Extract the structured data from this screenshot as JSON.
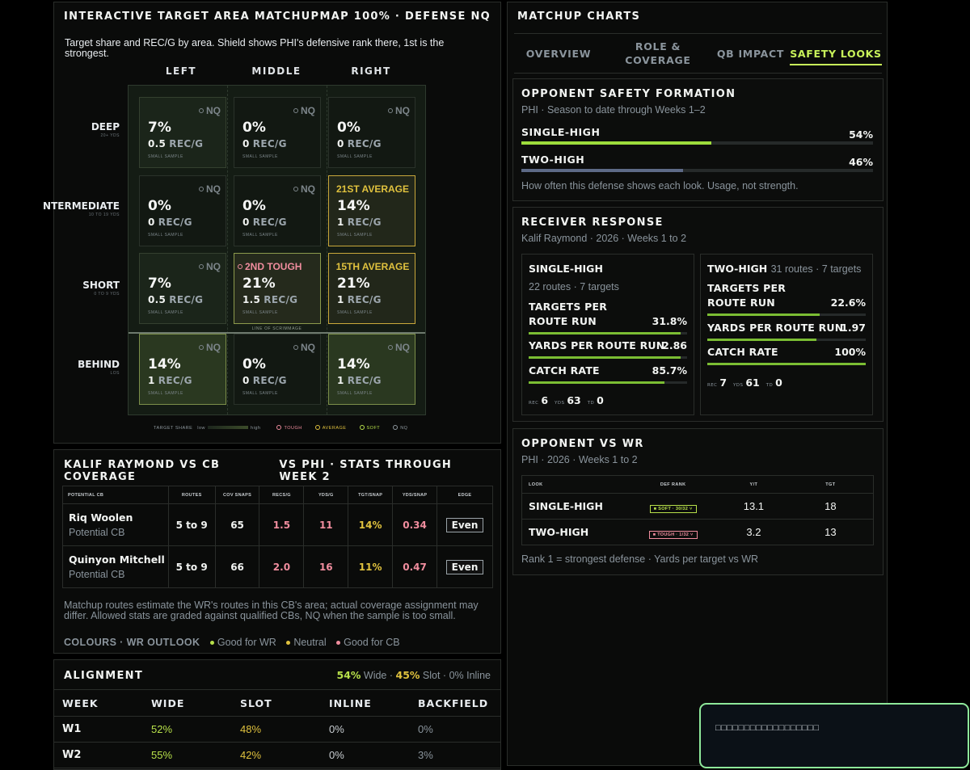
{
  "target_area": {
    "title": "INTERACTIVE TARGET AREA MATCHUP",
    "meta": "MAP 100% · DEFENSE NQ",
    "description": "Target share and REC/G by area. Shield shows PHI's defensive rank there, 1st is the strongest.",
    "columns": [
      "LEFT",
      "MIDDLE",
      "RIGHT"
    ],
    "rows": [
      {
        "name": "DEEP",
        "sub": "20+ YDS"
      },
      {
        "name": "NTERMEDIATE",
        "sub": "10 TO 19 YDS"
      },
      {
        "name": "SHORT",
        "sub": "0 TO 9 YDS"
      },
      {
        "name": "BEHIND",
        "sub": "LOS"
      }
    ],
    "line_of_scrimmage": "LINE OF SCRIMMAGE",
    "rec_unit": "REC/G",
    "zones": [
      {
        "rank": "NQ",
        "pct": "7%",
        "rec": "0.5",
        "note": "SMALL SAMPLE",
        "tone": "none",
        "share": 0.07
      },
      {
        "rank": "NQ",
        "pct": "0%",
        "rec": "0",
        "note": "SMALL SAMPLE",
        "tone": "none",
        "share": 0.0
      },
      {
        "rank": "NQ",
        "pct": "0%",
        "rec": "0",
        "note": "SMALL SAMPLE",
        "tone": "none",
        "share": 0.0
      },
      {
        "rank": "NQ",
        "pct": "0%",
        "rec": "0",
        "note": "SMALL SAMPLE",
        "tone": "none",
        "share": 0.0
      },
      {
        "rank": "NQ",
        "pct": "0%",
        "rec": "0",
        "note": "SMALL SAMPLE",
        "tone": "none",
        "share": 0.0
      },
      {
        "rank": "21ST AVERAGE",
        "pct": "14%",
        "rec": "1",
        "note": "SMALL SAMPLE",
        "tone": "average",
        "share": 0.14
      },
      {
        "rank": "NQ",
        "pct": "7%",
        "rec": "0.5",
        "note": "SMALL SAMPLE",
        "tone": "none",
        "share": 0.07
      },
      {
        "rank": "2ND TOUGH",
        "pct": "21%",
        "rec": "1.5",
        "note": "SMALL SAMPLE",
        "tone": "tough",
        "share": 0.21
      },
      {
        "rank": "15TH AVERAGE",
        "pct": "21%",
        "rec": "1",
        "note": "SMALL SAMPLE",
        "tone": "average",
        "share": 0.21
      },
      {
        "rank": "NQ",
        "pct": "14%",
        "rec": "1",
        "note": "SMALL SAMPLE",
        "tone": "none",
        "share": 0.14
      },
      {
        "rank": "NQ",
        "pct": "0%",
        "rec": "0",
        "note": "SMALL SAMPLE",
        "tone": "none",
        "share": 0.0
      },
      {
        "rank": "NQ",
        "pct": "14%",
        "rec": "1",
        "note": "SMALL SAMPLE",
        "tone": "none",
        "share": 0.14
      }
    ],
    "legend": {
      "label": "TARGET SHARE",
      "low": "low",
      "high": "high",
      "tough": "TOUGH",
      "average": "AVERAGE",
      "soft": "SOFT",
      "nq": "NQ"
    }
  },
  "cb_coverage": {
    "title": "KALIF RAYMOND VS CB COVERAGE",
    "meta": "VS PHI · STATS THROUGH WEEK 2",
    "headers": [
      "POTENTIAL CB",
      "ROUTES",
      "COV SNAPS",
      "RECS/G",
      "YDS/G",
      "TGT/SNAP",
      "YDS/SNAP",
      "EDGE"
    ],
    "rows": [
      {
        "name": "Riq Woolen",
        "role": "Potential CB",
        "routes": "5 to 9",
        "cov_snaps": "65",
        "recs_g": "1.5",
        "yds_g": "11",
        "tgt_snap": "14%",
        "yds_snap": "0.34",
        "edge": "Even"
      },
      {
        "name": "Quinyon Mitchell",
        "role": "Potential CB",
        "routes": "5 to 9",
        "cov_snaps": "66",
        "recs_g": "2.0",
        "yds_g": "16",
        "tgt_snap": "11%",
        "yds_snap": "0.47",
        "edge": "Even"
      }
    ],
    "note": "Matchup routes estimate the WR's routes in this CB's area; actual coverage assignment may differ. Allowed stats are graded against qualified CBs, NQ when the sample is too small.",
    "colours_label": "COLOURS · WR OUTLOOK",
    "colours": [
      "Good for WR",
      "Neutral",
      "Good for CB"
    ]
  },
  "alignment": {
    "title": "ALIGNMENT",
    "summary": {
      "wide_pct": "54%",
      "wide": "Wide",
      "slot_pct": "45%",
      "slot": "Slot",
      "inline": "0% Inline"
    },
    "headers": [
      "WEEK",
      "WIDE",
      "SLOT",
      "INLINE",
      "BACKFIELD"
    ],
    "rows": [
      {
        "week": "W1",
        "wide": "52%",
        "slot": "48%",
        "inline": "0%",
        "backfield": "0%"
      },
      {
        "week": "W2",
        "wide": "55%",
        "slot": "42%",
        "inline": "0%",
        "backfield": "3%"
      }
    ]
  },
  "charts": {
    "title": "MATCHUP CHARTS",
    "tabs": [
      "OVERVIEW",
      "ROLE &\nCOVERAGE",
      "QB IMPACT",
      "SAFETY LOOKS"
    ],
    "safety": {
      "title": "OPPONENT SAFETY FORMATION",
      "subtitle": "PHI · Season to date through Weeks 1–2",
      "bars": [
        {
          "label": "SINGLE-HIGH",
          "value": "54%",
          "frac": 0.54,
          "color": "#9ddc3c"
        },
        {
          "label": "TWO-HIGH",
          "value": "46%",
          "frac": 0.46,
          "color": "#5d6a86"
        }
      ],
      "footnote": "How often this defense shows each look. Usage, not strength."
    },
    "receiver": {
      "title": "RECEIVER RESPONSE",
      "subtitle": "Kalif Raymond · 2026 · Weeks 1 to 2",
      "single": {
        "title": "SINGLE-HIGH",
        "sub": "22 routes · 7 targets",
        "metrics": [
          {
            "label": "TARGETS PER ROUTE RUN",
            "value": "31.8%",
            "frac": 0.96
          },
          {
            "label": "YARDS PER ROUTE RUN",
            "value": "2.86",
            "frac": 0.96
          },
          {
            "label": "CATCH RATE",
            "value": "85.7%",
            "frac": 0.857
          }
        ],
        "rec_label": "REC",
        "rec": "6",
        "yds_label": "YDS",
        "yds": "63",
        "td_label": "TD",
        "td": "0"
      },
      "two": {
        "title": "TWO-HIGH",
        "sub": "31 routes · 7 targets",
        "metrics": [
          {
            "label": "TARGETS PER ROUTE RUN",
            "value": "22.6%",
            "frac": 0.71
          },
          {
            "label": "YARDS PER ROUTE RUN",
            "value": "1.97",
            "frac": 0.69
          },
          {
            "label": "CATCH RATE",
            "value": "100%",
            "frac": 1.0
          }
        ],
        "rec_label": "REC",
        "rec": "7",
        "yds_label": "YDS",
        "yds": "61",
        "td_label": "TD",
        "td": "0"
      }
    },
    "opp_wr": {
      "title": "OPPONENT VS WR",
      "subtitle": "PHI · 2026 · Weeks 1 to 2",
      "headers": [
        "LOOK",
        "DEF RANK",
        "Y/T",
        "TGT"
      ],
      "rows": [
        {
          "look": "SINGLE-HIGH",
          "rank": "SOFT · 30/32",
          "tone": "soft",
          "yt": "13.1",
          "tgt": "18"
        },
        {
          "look": "TWO-HIGH",
          "rank": "TOUGH · 1/32",
          "tone": "tough",
          "yt": "3.2",
          "tgt": "13"
        }
      ],
      "footnote": "Rank 1 = strongest defense · Yards per target vs WR"
    }
  },
  "toast": {
    "text": "□□□□□□□□□□□□□□□□□□"
  },
  "colors": {
    "good_wr": "#b7e04a",
    "neutral": "#e0c23e",
    "good_cb": "#f08d9e",
    "accent": "#c8f25a"
  }
}
